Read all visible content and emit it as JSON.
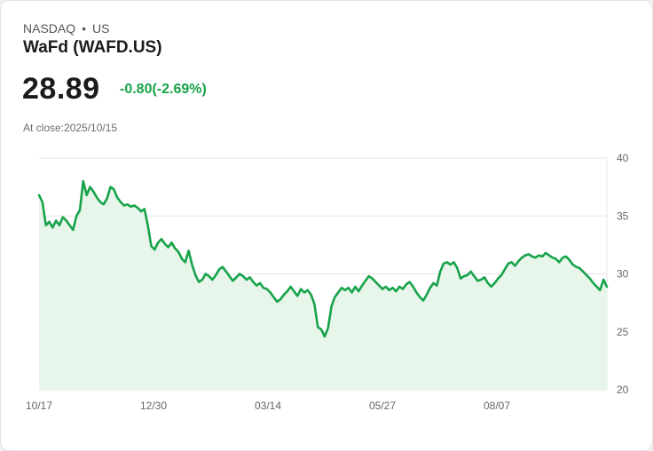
{
  "header": {
    "exchange": "NASDAQ",
    "separator": "•",
    "region": "US",
    "title": "WaFd (WAFD.US)",
    "price": "28.89",
    "change": "-0.80(-2.69%)",
    "close_text": "At close:2025/10/15"
  },
  "colors": {
    "line": "#17a34a",
    "fill": "#e7f5ea",
    "change_text": "#17a34a"
  },
  "chart_data": {
    "type": "area",
    "x_tick_labels": [
      "10/17",
      "12/30",
      "03/14",
      "05/27",
      "08/07"
    ],
    "y_ticks": [
      20,
      25,
      30,
      35,
      40
    ],
    "ylim": [
      20,
      40
    ],
    "grid": true,
    "series": [
      {
        "values": [
          36.8,
          36.2,
          34.2,
          34.5,
          34.0,
          34.6,
          34.2,
          34.9,
          34.6,
          34.2,
          33.8,
          35.0,
          35.5,
          38.0,
          36.8,
          37.5,
          37.1,
          36.6,
          36.2,
          36.0,
          36.5,
          37.5,
          37.3,
          36.6,
          36.2,
          35.9,
          36.0,
          35.8,
          35.9,
          35.7,
          35.4,
          35.6,
          34.2,
          32.4,
          32.1,
          32.7,
          33.0,
          32.6,
          32.3,
          32.7,
          32.2,
          31.9,
          31.3,
          31.0,
          32.0,
          30.8,
          29.9,
          29.3,
          29.5,
          30.0,
          29.8,
          29.5,
          29.9,
          30.4,
          30.6,
          30.2,
          29.8,
          29.4,
          29.7,
          30.0,
          29.8,
          29.5,
          29.7,
          29.3,
          29.0,
          29.2,
          28.8,
          28.7,
          28.4,
          28.0,
          27.6,
          27.8,
          28.2,
          28.5,
          28.9,
          28.5,
          28.1,
          28.7,
          28.4,
          28.6,
          28.2,
          27.4,
          25.4,
          25.2,
          24.6,
          25.3,
          27.2,
          28.0,
          28.4,
          28.8,
          28.6,
          28.8,
          28.4,
          28.9,
          28.5,
          29.0,
          29.4,
          29.8,
          29.6,
          29.3,
          29.0,
          28.7,
          28.9,
          28.6,
          28.8,
          28.5,
          28.9,
          28.7,
          29.1,
          29.3,
          28.9,
          28.4,
          28.0,
          27.7,
          28.2,
          28.8,
          29.2,
          29.0,
          30.2,
          30.9,
          31.0,
          30.8,
          31.0,
          30.5,
          29.6,
          29.8,
          29.9,
          30.2,
          29.8,
          29.4,
          29.5,
          29.7,
          29.2,
          28.9,
          29.2,
          29.6,
          29.9,
          30.4,
          30.9,
          31.0,
          30.7,
          31.1,
          31.4,
          31.6,
          31.7,
          31.5,
          31.4,
          31.6,
          31.5,
          31.8,
          31.6,
          31.4,
          31.3,
          31.0,
          31.4,
          31.5,
          31.2,
          30.8,
          30.6,
          30.5,
          30.2,
          29.9,
          29.6,
          29.2,
          28.9,
          28.6,
          29.5,
          28.89
        ]
      }
    ]
  }
}
